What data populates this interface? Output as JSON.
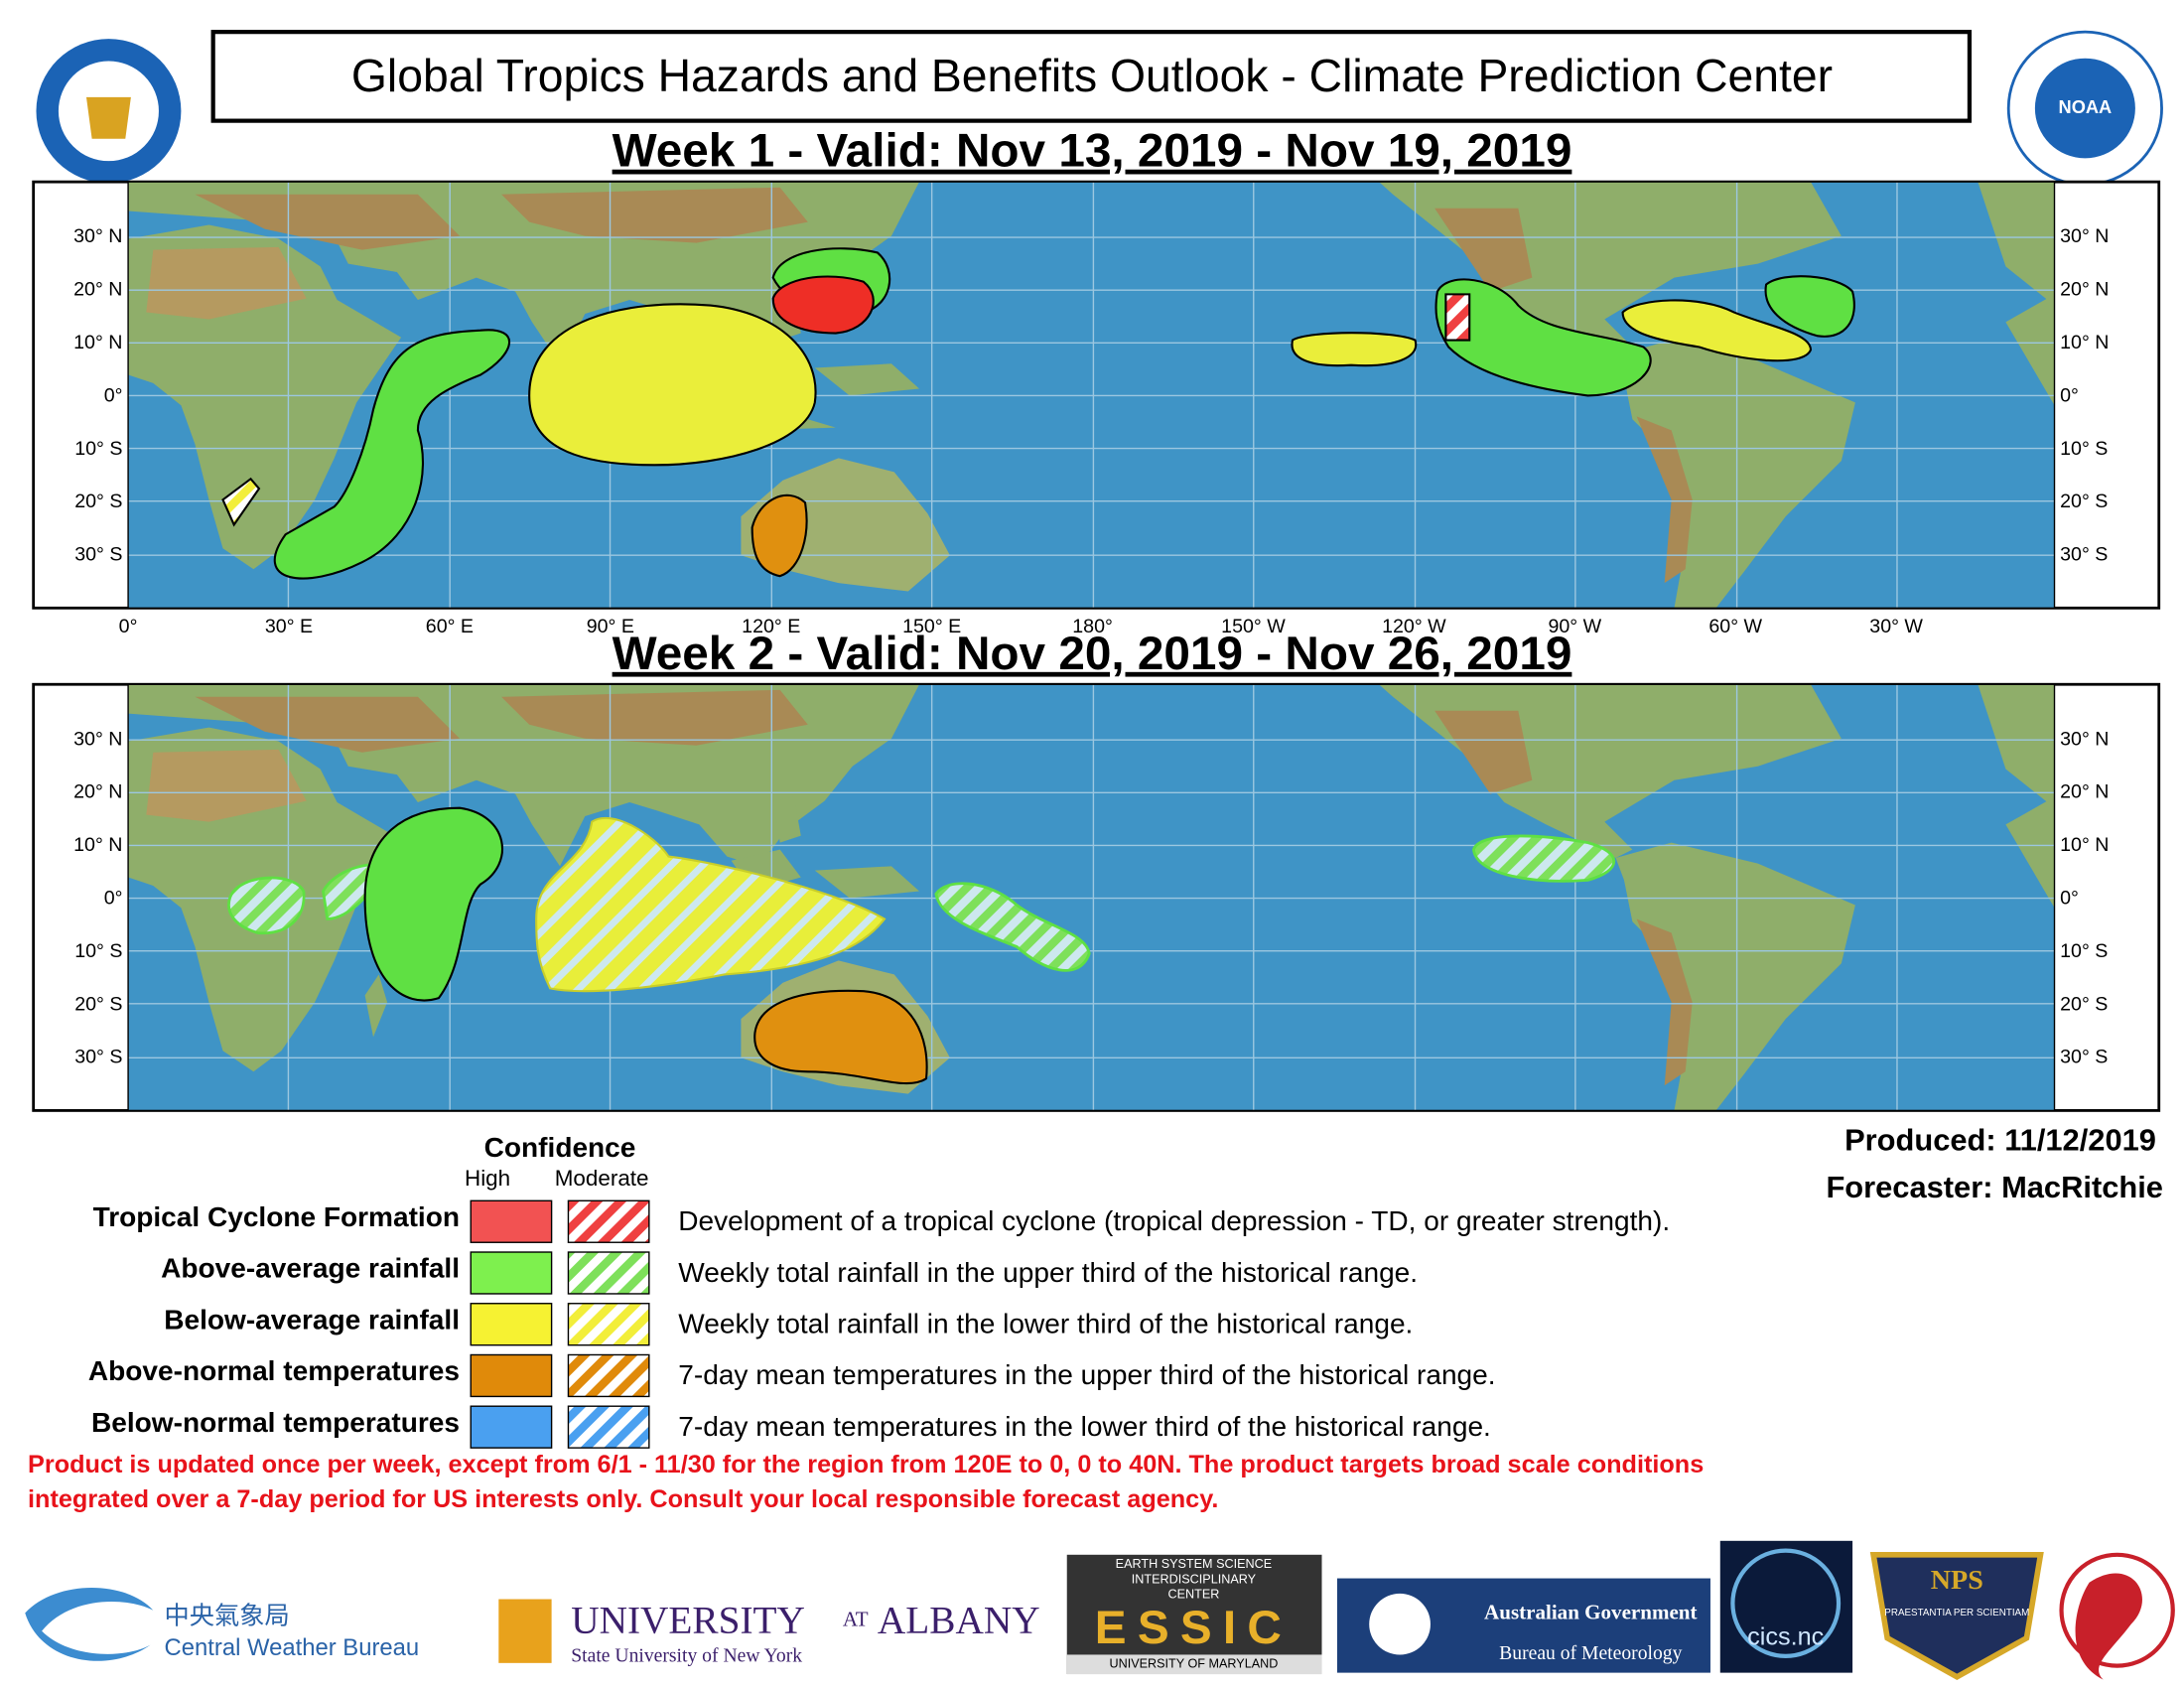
{
  "header": {
    "title": "Global Tropics Hazards and Benefits Outlook - Climate Prediction Center",
    "week1_title": "Week 1 - Valid: Nov 13, 2019 - Nov 19, 2019",
    "week2_title": "Week 2 - Valid: Nov 20, 2019 - Nov 26, 2019"
  },
  "map": {
    "lat_labels": [
      "30° N",
      "20° N",
      "10° N",
      "0°",
      "10° S",
      "20° S",
      "30° S"
    ],
    "lon_labels": [
      "0°",
      "30° E",
      "60° E",
      "90° E",
      "120° E",
      "150° E",
      "180°",
      "150° W",
      "120° W",
      "90° W",
      "60° W",
      "30° W"
    ]
  },
  "legend": {
    "heading": "Confidence",
    "high": "High",
    "moderate": "Moderate",
    "items": [
      {
        "label": "Tropical Cyclone Formation",
        "description": "Development of a tropical cyclone (tropical depression - TD, or greater strength)."
      },
      {
        "label": "Above-average rainfall",
        "description": "Weekly total rainfall in the upper third of the historical range."
      },
      {
        "label": "Below-average rainfall",
        "description": "Weekly total rainfall in the lower third of the historical range."
      },
      {
        "label": "Above-normal temperatures",
        "description": "7-day mean temperatures in the upper third of the historical range."
      },
      {
        "label": "Below-normal temperatures",
        "description": "7-day mean temperatures in the lower third of the historical range."
      }
    ]
  },
  "credits": {
    "produced": "Produced: 11/12/2019",
    "forecaster": "Forecaster: MacRitchie"
  },
  "disclaimer": [
    "Product is updated once per week, except from 6/1 - 11/30 for the region from 120E to 0, 0 to 40N. The product targets broad scale conditions",
    "integrated over a 7-day period for US interests only.  Consult your local responsible forecast agency."
  ],
  "logos": {
    "cwb_chinese": "中央氣象局",
    "cwb": "Central Weather Bureau",
    "albany": "UNIVERSITY",
    "albany_at": "AT",
    "albany_name": "ALBANY",
    "albany_sub": "State University of New York",
    "essic_top": "EARTH SYSTEM SCIENCE",
    "essic_mid": "INTERDISCIPLINARY",
    "essic_center": "CENTER",
    "essic": "ESSIC",
    "essic_bottom": "UNIVERSITY OF MARYLAND",
    "aus_gov": "Australian Government",
    "bom": "Bureau of Meteorology",
    "cics": "cics.nc",
    "nps": "NPS",
    "nps_motto": "PRAESTANTIA PER SCIENTIAM",
    "noaa": "NOAA"
  }
}
